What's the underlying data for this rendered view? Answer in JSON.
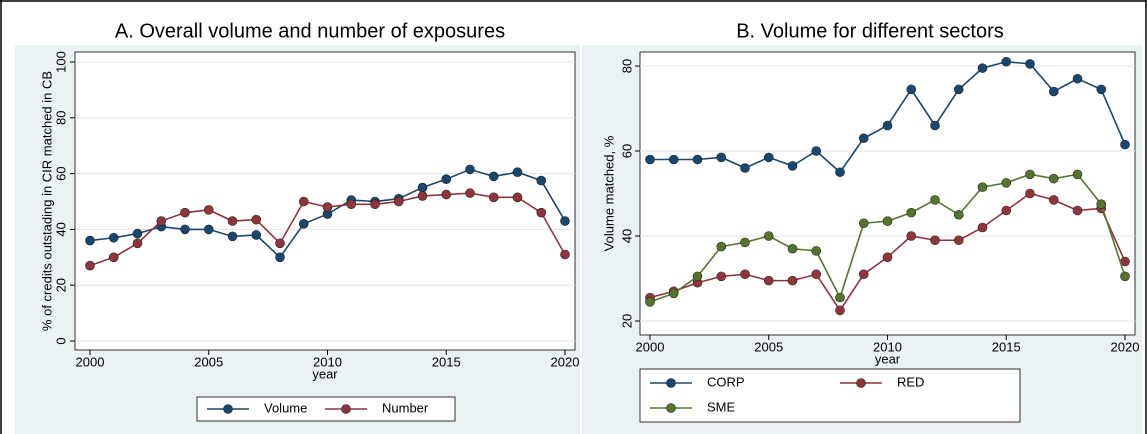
{
  "chart_data": [
    {
      "type": "line",
      "title": "A. Overall volume and number of exposures",
      "x_label": "year",
      "y_label": "% of credits outstading in CIR matched in CB",
      "x": [
        2000,
        2001,
        2002,
        2003,
        2004,
        2005,
        2006,
        2007,
        2008,
        2009,
        2010,
        2011,
        2012,
        2013,
        2014,
        2015,
        2016,
        2017,
        2018,
        2019,
        2020
      ],
      "xlim": [
        2000,
        2020
      ],
      "xticks": [
        2000,
        2005,
        2010,
        2015,
        2020
      ],
      "ylim": [
        0,
        100
      ],
      "yticks": [
        0,
        20,
        40,
        60,
        80,
        100
      ],
      "grid": true,
      "series": [
        {
          "name": "Volume",
          "color": "#1a476f",
          "values": [
            36,
            37,
            38.5,
            41,
            40,
            40,
            37.5,
            38,
            30,
            42,
            45.5,
            50.5,
            50,
            51,
            55,
            58,
            61.5,
            59,
            60.5,
            57.5,
            43
          ]
        },
        {
          "name": "Number",
          "color": "#90353b",
          "values": [
            27,
            30,
            35,
            43,
            46,
            47,
            43,
            43.5,
            35,
            50,
            48,
            49,
            49,
            50,
            52,
            52.5,
            53,
            51.5,
            51.5,
            46,
            31
          ]
        }
      ]
    },
    {
      "type": "line",
      "title": "B. Volume for different sectors",
      "x_label": "year",
      "y_label": "Volume matched, %",
      "x": [
        2000,
        2001,
        2002,
        2003,
        2004,
        2005,
        2006,
        2007,
        2008,
        2009,
        2010,
        2011,
        2012,
        2013,
        2014,
        2015,
        2016,
        2017,
        2018,
        2019,
        2020
      ],
      "xlim": [
        2000,
        2020
      ],
      "xticks": [
        2000,
        2005,
        2010,
        2015,
        2020
      ],
      "ylim": [
        20,
        80
      ],
      "yticks": [
        20,
        40,
        60,
        80
      ],
      "grid": true,
      "series": [
        {
          "name": "CORP",
          "color": "#1a476f",
          "values": [
            58,
            58,
            58,
            58.5,
            56,
            58.5,
            56.5,
            60,
            55,
            63,
            66,
            74.5,
            66,
            74.5,
            79.5,
            81,
            80.5,
            74,
            77,
            74.5,
            61.5
          ]
        },
        {
          "name": "RED",
          "color": "#90353b",
          "values": [
            25.5,
            27,
            29,
            30.5,
            31,
            29.5,
            29.5,
            31,
            22.5,
            31,
            35,
            40,
            39,
            39,
            42,
            46,
            50,
            48.5,
            46,
            46.5,
            34
          ]
        },
        {
          "name": "SME",
          "color": "#55752f",
          "values": [
            24.5,
            26.5,
            30.5,
            37.5,
            38.5,
            40,
            37,
            36.5,
            25.5,
            43,
            43.5,
            45.5,
            48.5,
            45,
            51.5,
            52.5,
            54.5,
            53.5,
            54.5,
            47.5,
            30.5
          ]
        }
      ]
    }
  ]
}
